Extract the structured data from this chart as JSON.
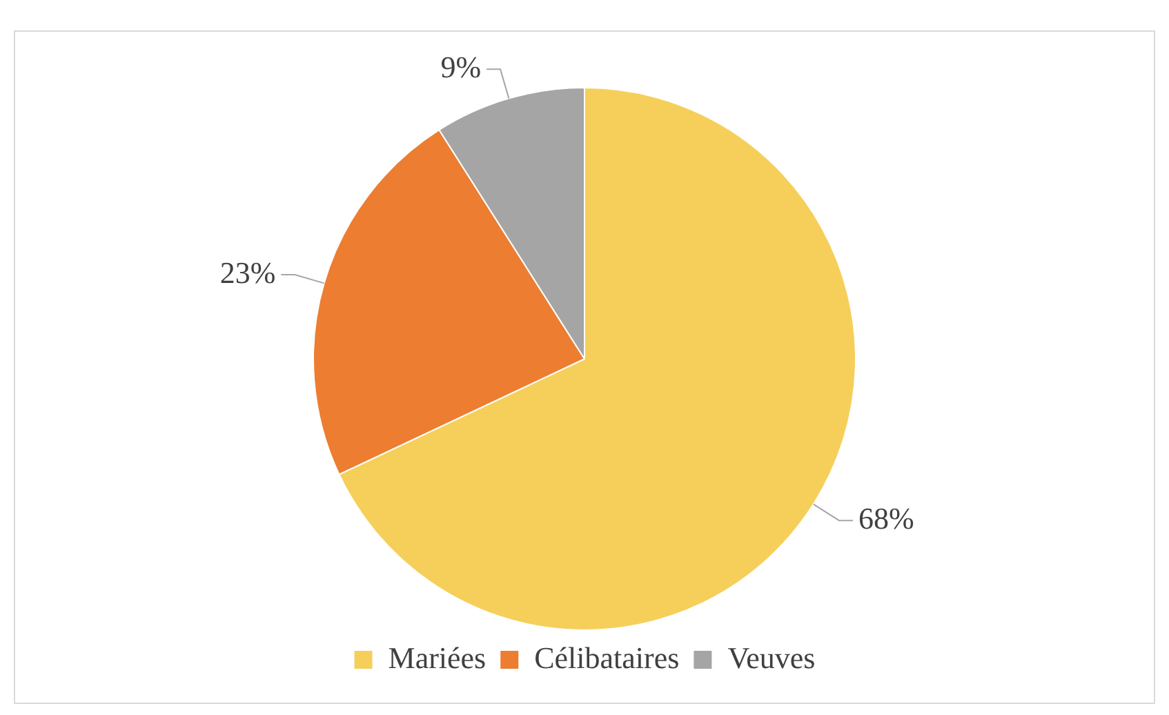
{
  "chart_data": {
    "type": "pie",
    "categories": [
      "Mariées",
      "Célibataires",
      "Veuves"
    ],
    "values": [
      68,
      23,
      9
    ],
    "colors": [
      "#f6cf5b",
      "#ed7d31",
      "#a5a5a5"
    ],
    "value_labels": [
      "68%",
      "23%",
      "9%"
    ],
    "legend": "bottom"
  }
}
